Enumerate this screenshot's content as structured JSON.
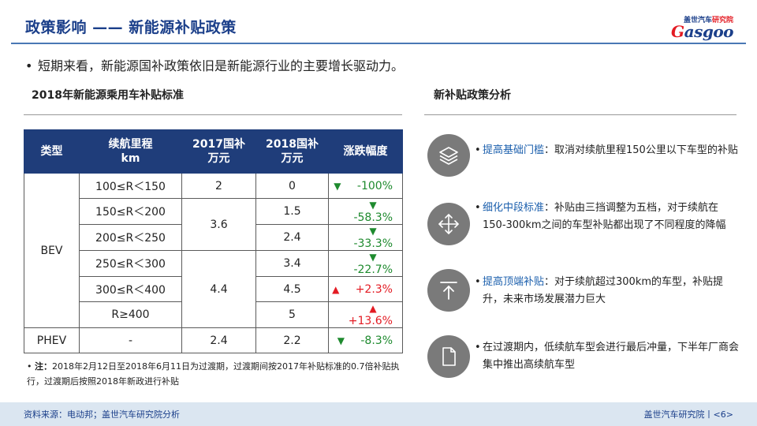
{
  "header": {
    "title": "政策影响 —— 新能源补贴政策",
    "logo_top": "盖世汽车",
    "logo_top_red": "研究院",
    "logo_main_g": "G",
    "logo_main_rest": "asgoo"
  },
  "main_bullet": "短期来看，新能源国补政策依旧是新能源行业的主要增长驱动力。",
  "left_section": {
    "heading": "2018年新能源乘用车补贴标准",
    "table": {
      "headers": {
        "type": "类型",
        "range_1": "续航里程",
        "range_2": "km",
        "y2017_1": "2017国补",
        "y2017_2": "万元",
        "y2018_1": "2018国补",
        "y2018_2": "万元",
        "change": "涨跌幅度"
      },
      "bev_label": "BEV",
      "phev_label": "PHEV",
      "rows": [
        {
          "range": "100≤R＜150",
          "y2017": "2",
          "y2018": "0",
          "change": "-100%",
          "dir": "down"
        },
        {
          "range": "150≤R＜200",
          "y2017": "3.6",
          "y2018": "1.5",
          "change": "-58.3%",
          "dir": "down"
        },
        {
          "range": "200≤R＜250",
          "y2018": "2.4",
          "change": "-33.3%",
          "dir": "down"
        },
        {
          "range": "250≤R＜300",
          "y2017": "4.4",
          "y2018": "3.4",
          "change": "-22.7%",
          "dir": "down"
        },
        {
          "range": "300≤R＜400",
          "y2018": "4.5",
          "change": "+2.3%",
          "dir": "up"
        },
        {
          "range": "R≥400",
          "y2018": "5",
          "change": "+13.6%",
          "dir": "up"
        },
        {
          "range": "-",
          "y2017": "2.4",
          "y2018": "2.2",
          "change": "-8.3%",
          "dir": "down"
        }
      ]
    },
    "note_label": "注：",
    "note_text": "2018年2月12日至2018年6月11日为过渡期，过渡期间按2017年补贴标准的0.7倍补贴执行，过渡期后按照2018年新政进行补贴"
  },
  "right_section": {
    "heading": "新补贴政策分析",
    "points": [
      {
        "icon": "layers-icon",
        "key": "提高基础门槛",
        "text": "：取消对续航里程150公里以下车型的补贴"
      },
      {
        "icon": "move-arrows-icon",
        "key": "细化中段标准",
        "text": "：补贴由三挡调整为五档，对于续航在150-300km之间的车型补贴都出现了不同程度的降幅"
      },
      {
        "icon": "arrow-up-to-top-icon",
        "key": "提高顶端补贴",
        "text": "：对于续航超过300km的车型，补贴提升，未来市场发展潜力巨大"
      },
      {
        "icon": "document-icon",
        "key": "",
        "text": "在过渡期内，低续航车型会进行最后冲量，下半年厂商会集中推出高续航车型"
      }
    ]
  },
  "footer": {
    "source": "资料来源：电动邦；盖世汽车研究院分析",
    "page": "盖世汽车研究院丨<6>"
  },
  "colors": {
    "title_blue": "#1b3f8a",
    "table_header": "#1f3d7a",
    "up_red": "#e31b23",
    "down_green": "#1e8a2e",
    "icon_gray": "#7a7a7a",
    "footer_bg": "#dbe6f1"
  }
}
